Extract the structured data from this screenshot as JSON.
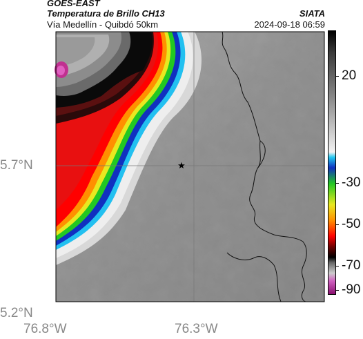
{
  "header": {
    "satellite": "GOES-EAST",
    "product": "Temperatura de Brillo CH13",
    "region": "Vía Medellín - Quibdó 50km",
    "source": "SIATA",
    "datetime": "2024-09-18 06:59"
  },
  "map": {
    "lat_labels": [
      "5.7°N",
      "5.2°N"
    ],
    "lon_labels": [
      "76.8°W",
      "76.3°W"
    ],
    "marker_icon": "star-icon"
  },
  "colorbar": {
    "labels": [
      "20",
      "-30",
      "-50",
      "-70",
      "-90"
    ],
    "units_hint": "brightness temperature °C"
  },
  "colors": {
    "cold_tops": "#ff0000",
    "warm_surface": "#8a8a8a",
    "very_cold": "#0a0a0a",
    "extreme": "#d03aa0"
  }
}
